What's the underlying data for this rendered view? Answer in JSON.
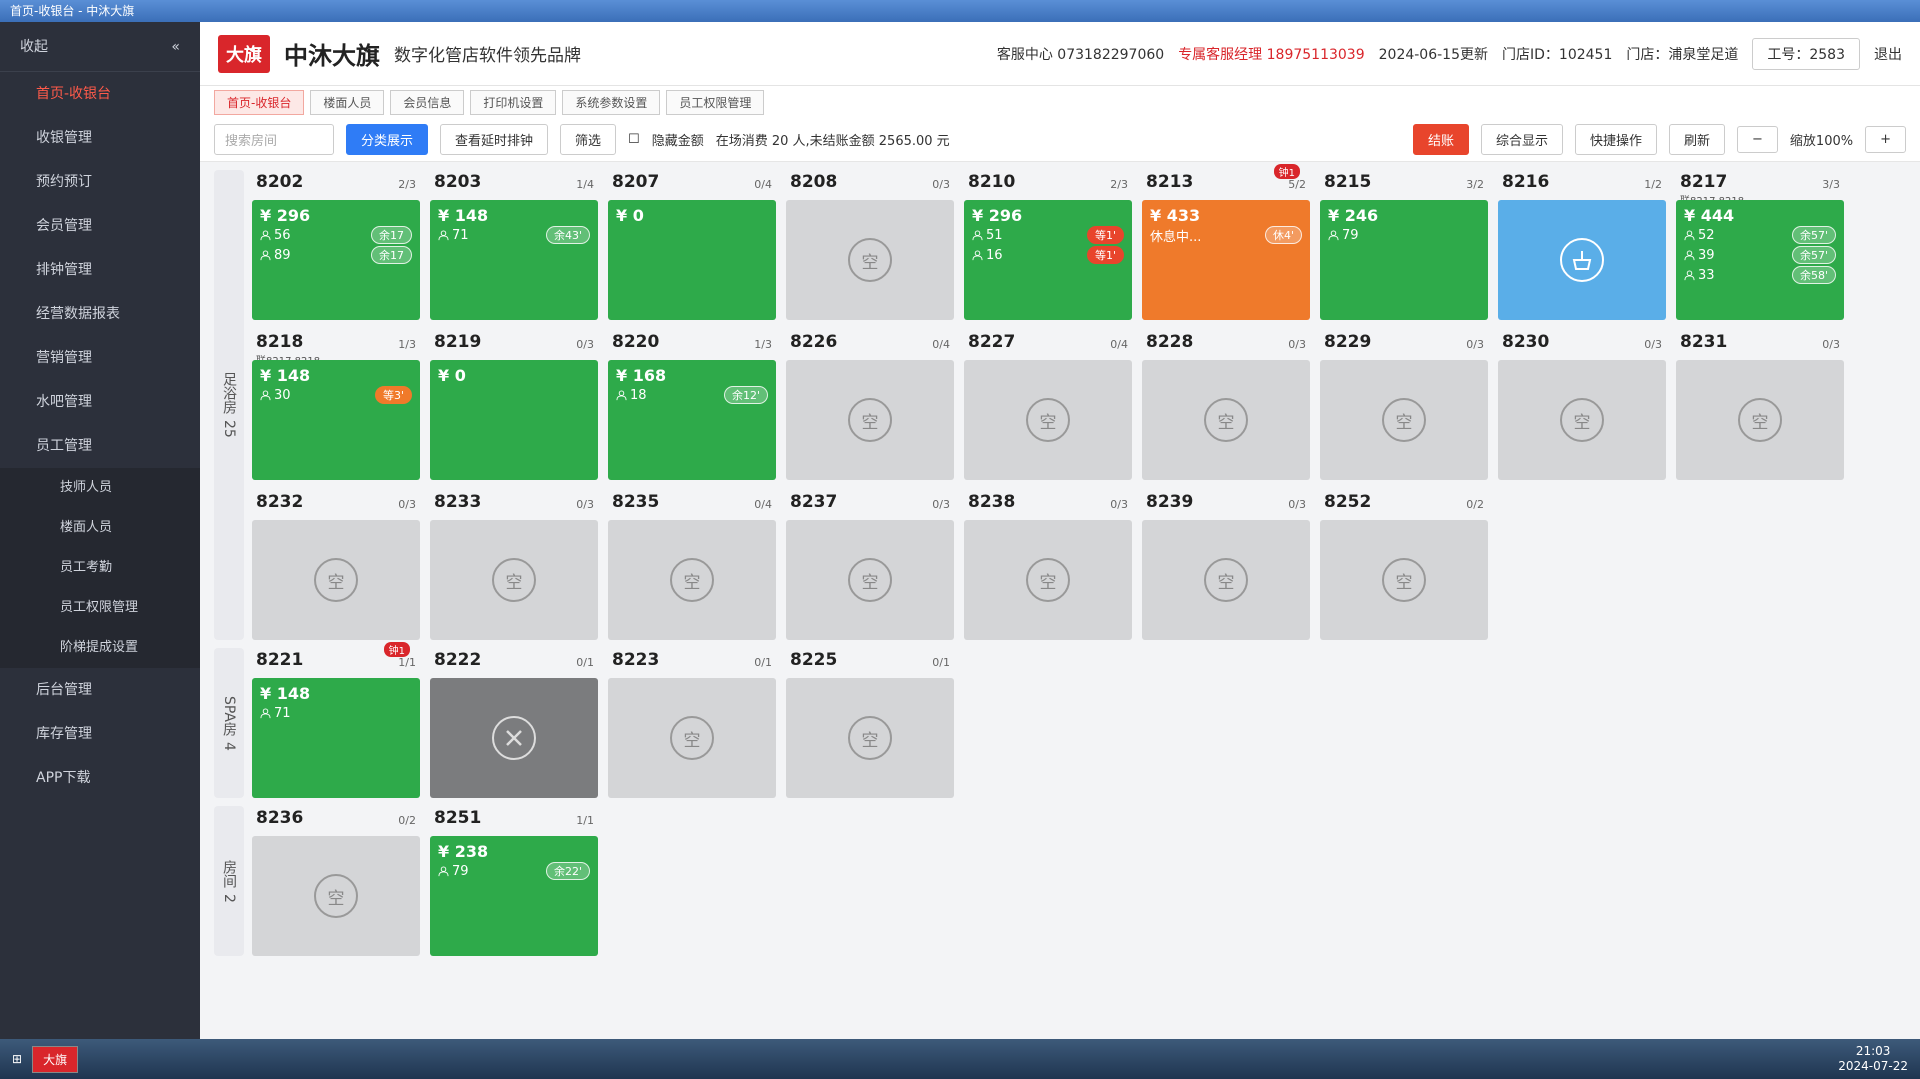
{
  "window_title": "首页-收银台 - 中沐大旗",
  "sidebar": {
    "collapse": "收起",
    "items": [
      "首页-收银台",
      "收银管理",
      "预约预订",
      "会员管理",
      "排钟管理",
      "经营数据报表",
      "营销管理",
      "水吧管理",
      "员工管理",
      "技师人员",
      "楼面人员",
      "员工考勤",
      "员工权限管理",
      "阶梯提成设置",
      "后台管理",
      "库存管理",
      "APP下载"
    ],
    "active": 0,
    "sub_items": [
      9,
      10,
      11,
      12,
      13
    ]
  },
  "header": {
    "logo": "大旗",
    "brand": "中沐大旗",
    "slogan": "数字化管店软件领先品牌",
    "service": "客服中心 073182297060",
    "manager": "专属客服经理 18975113039",
    "update": "2024-06-15更新",
    "store_id": "门店ID：102451",
    "store": "门店：浦泉堂足道",
    "worker": "工号：2583",
    "logout": "退出"
  },
  "tabs": [
    "首页-收银台",
    "楼面人员",
    "会员信息",
    "打印机设置",
    "系统参数设置",
    "员工权限管理"
  ],
  "toolbar": {
    "search": "搜索房间",
    "classify": "分类展示",
    "delay": "查看延时排钟",
    "filter": "筛选",
    "hide_amount": "隐藏金额",
    "summary": "在场消费 20 人,未结账金额 2565.00 元",
    "checkout": "结账",
    "overview": "综合显示",
    "quick": "快捷操作",
    "refresh": "刷新",
    "zoom": "缩放100%",
    "minus": "−",
    "plus": "+"
  },
  "empty_label": "空",
  "groups": [
    {
      "label": "足浴房",
      "count": "25",
      "rooms": [
        {
          "no": "8202",
          "cap": "2/3",
          "status": "occupied",
          "amount": "¥ 296",
          "lines": [
            {
              "id": "56",
              "tag": "余17"
            },
            {
              "id": "89",
              "tag": "余17"
            }
          ]
        },
        {
          "no": "8203",
          "cap": "1/4",
          "status": "occupied",
          "amount": "¥ 148",
          "lines": [
            {
              "id": "71",
              "tag": "余43'"
            }
          ]
        },
        {
          "no": "8207",
          "cap": "0/4",
          "status": "occupied",
          "amount": "¥ 0",
          "lines": []
        },
        {
          "no": "8208",
          "cap": "0/3",
          "status": "empty"
        },
        {
          "no": "8210",
          "cap": "2/3",
          "status": "occupied",
          "amount": "¥ 296",
          "lines": [
            {
              "id": "51",
              "tag": "等1'",
              "tag_color": "#e8452c"
            },
            {
              "id": "16",
              "tag": "等1'",
              "tag_color": "#e8452c"
            }
          ]
        },
        {
          "no": "8213",
          "cap": "5/2",
          "status": "resting",
          "badge": "钟1",
          "amount": "¥ 433",
          "lines": [
            {
              "text": "休息中...",
              "tag": "休4'"
            }
          ]
        },
        {
          "no": "8215",
          "cap": "3/2",
          "status": "occupied",
          "amount": "¥ 246",
          "lines": [
            {
              "id": "79"
            }
          ]
        },
        {
          "no": "8216",
          "cap": "1/2",
          "status": "cleaning"
        },
        {
          "no": "8217",
          "cap": "3/3",
          "sub": "联8217,8218",
          "status": "occupied",
          "amount": "¥ 444",
          "lines": [
            {
              "id": "52",
              "tag": "余57'"
            },
            {
              "id": "39",
              "tag": "余57'"
            },
            {
              "id": "33",
              "tag": "余58'"
            }
          ]
        },
        {
          "no": "8218",
          "cap": "1/3",
          "sub": "联8217,8218",
          "status": "occupied",
          "amount": "¥ 148",
          "lines": [
            {
              "id": "30",
              "tag": "等3'",
              "tag_color": "#f07a2a"
            }
          ]
        },
        {
          "no": "8219",
          "cap": "0/3",
          "status": "occupied",
          "amount": "¥ 0",
          "lines": []
        },
        {
          "no": "8220",
          "cap": "1/3",
          "status": "occupied",
          "amount": "¥ 168",
          "lines": [
            {
              "id": "18",
              "tag": "余12'"
            }
          ]
        },
        {
          "no": "8226",
          "cap": "0/4",
          "status": "empty"
        },
        {
          "no": "8227",
          "cap": "0/4",
          "status": "empty"
        },
        {
          "no": "8228",
          "cap": "0/3",
          "status": "empty"
        },
        {
          "no": "8229",
          "cap": "0/3",
          "status": "empty"
        },
        {
          "no": "8230",
          "cap": "0/3",
          "status": "empty"
        },
        {
          "no": "8231",
          "cap": "0/3",
          "status": "empty"
        },
        {
          "no": "8232",
          "cap": "0/3",
          "status": "empty"
        },
        {
          "no": "8233",
          "cap": "0/3",
          "status": "empty"
        },
        {
          "no": "8235",
          "cap": "0/4",
          "status": "empty"
        },
        {
          "no": "8237",
          "cap": "0/3",
          "status": "empty"
        },
        {
          "no": "8238",
          "cap": "0/3",
          "status": "empty"
        },
        {
          "no": "8239",
          "cap": "0/3",
          "status": "empty"
        },
        {
          "no": "8252",
          "cap": "0/2",
          "status": "empty"
        }
      ]
    },
    {
      "label": "SPA房",
      "count": "4",
      "rooms": [
        {
          "no": "8221",
          "cap": "1/1",
          "status": "occupied",
          "badge": "钟1",
          "amount": "¥ 148",
          "lines": [
            {
              "id": "71"
            }
          ]
        },
        {
          "no": "8222",
          "cap": "0/1",
          "status": "repair"
        },
        {
          "no": "8223",
          "cap": "0/1",
          "status": "empty"
        },
        {
          "no": "8225",
          "cap": "0/1",
          "status": "empty"
        }
      ]
    },
    {
      "label": "房间",
      "count": "2",
      "rooms": [
        {
          "no": "8236",
          "cap": "0/2",
          "status": "empty"
        },
        {
          "no": "8251",
          "cap": "1/1",
          "status": "occupied",
          "amount": "¥ 238",
          "lines": [
            {
              "id": "79",
              "tag": "余22'"
            }
          ]
        }
      ]
    }
  ],
  "taskbar": {
    "app": "大旗",
    "time": "21:03",
    "date": "2024-07-22"
  }
}
